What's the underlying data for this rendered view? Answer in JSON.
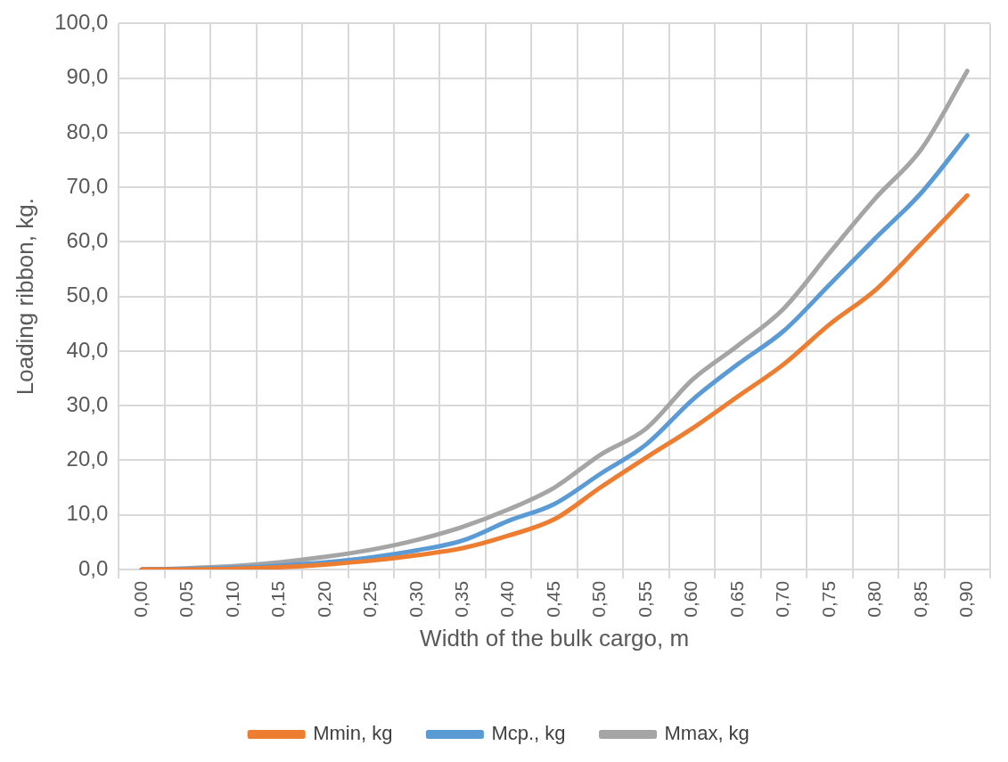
{
  "chart_data": {
    "type": "line",
    "xlabel": "Width of the bulk cargo, m",
    "ylabel": "Loading ribbon, kg.",
    "categories": [
      "0,00",
      "0,05",
      "0,10",
      "0,15",
      "0,20",
      "0,25",
      "0,30",
      "0,35",
      "0,40",
      "0,45",
      "0,50",
      "0,55",
      "0,60",
      "0,65",
      "0,70",
      "0,75",
      "0,80",
      "0,85",
      "0,90"
    ],
    "series": [
      {
        "name": "Mmin, kg",
        "color": "#ed7d31",
        "values": [
          0,
          0,
          0.1,
          0.4,
          0.9,
          1.6,
          2.6,
          3.9,
          6.2,
          9.2,
          15,
          20.5,
          25.8,
          31.7,
          37.6,
          44.9,
          51.2,
          59.7,
          68.5
        ]
      },
      {
        "name": "Mcp., kg",
        "color": "#5b9bd5",
        "values": [
          0,
          0.1,
          0.3,
          0.7,
          1.3,
          2.2,
          3.5,
          5.3,
          8.9,
          12,
          17.5,
          22.9,
          31,
          37.6,
          43.7,
          52.2,
          60.7,
          69,
          79.5
        ]
      },
      {
        "name": "Mmax, kg",
        "color": "#a5a5a5",
        "values": [
          0,
          0.2,
          0.6,
          1.3,
          2.3,
          3.6,
          5.4,
          7.8,
          11,
          15,
          21,
          25.8,
          34.7,
          41,
          47.8,
          58,
          68,
          77,
          91.3
        ]
      }
    ],
    "ylim": [
      0,
      100
    ],
    "yticks": [
      {
        "value": 0,
        "label": "0,0"
      },
      {
        "value": 10,
        "label": "10,0"
      },
      {
        "value": 20,
        "label": "20,0"
      },
      {
        "value": 30,
        "label": "30,0"
      },
      {
        "value": 40,
        "label": "40,0"
      },
      {
        "value": 50,
        "label": "50,0"
      },
      {
        "value": 60,
        "label": "60,0"
      },
      {
        "value": 70,
        "label": "70,0"
      },
      {
        "value": 80,
        "label": "80,0"
      },
      {
        "value": 90,
        "label": "90,0"
      },
      {
        "value": 100,
        "label": "100,0"
      }
    ],
    "grid": true,
    "legend": "bottom",
    "marker": "none",
    "line_style": "solid"
  }
}
